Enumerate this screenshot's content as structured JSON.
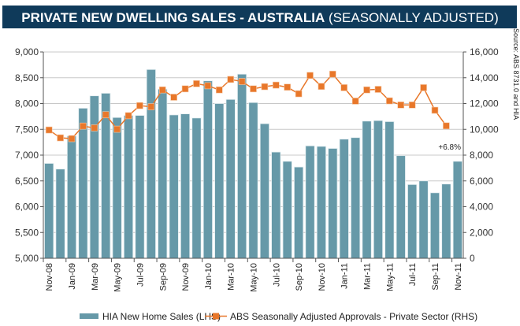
{
  "header": {
    "title_bold": "PRIVATE NEW DWELLING SALES -  AUSTRALIA",
    "title_light": "(SEASONALLY ADJUSTED)",
    "background": "#0f3a5a"
  },
  "source_note": "Source: ABS 8731.0 and HIA",
  "chart_data": {
    "type": "bar+line",
    "categories": [
      "Nov-08",
      "Dec-08",
      "Jan-09",
      "Feb-09",
      "Mar-09",
      "Apr-09",
      "May-09",
      "Jun-09",
      "Jul-09",
      "Aug-09",
      "Sep-09",
      "Oct-09",
      "Nov-09",
      "Dec-09",
      "Jan-10",
      "Feb-10",
      "Mar-10",
      "Apr-10",
      "May-10",
      "Jun-10",
      "Jul-10",
      "Aug-10",
      "Sep-10",
      "Oct-10",
      "Nov-10",
      "Dec-10",
      "Jan-11",
      "Feb-11",
      "Mar-11",
      "Apr-11",
      "May-11",
      "Jun-11",
      "Jul-11",
      "Aug-11",
      "Sep-11",
      "Oct-11",
      "Nov-11"
    ],
    "tick_labels": [
      "Nov-08",
      "Jan-09",
      "Mar-09",
      "May-09",
      "Jul-09",
      "Sep-09",
      "Nov-09",
      "Jan-10",
      "Mar-10",
      "May-10",
      "Jul-10",
      "Sep-10",
      "Nov-10",
      "Jan-11",
      "Mar-11",
      "May-11",
      "Jul-11",
      "Sep-11",
      "Nov-11"
    ],
    "series": [
      {
        "name": "HIA New Home Sales (LHS)",
        "type": "bar",
        "axis": "left",
        "color": "#6699a8",
        "values": [
          6840,
          6730,
          7370,
          7910,
          8150,
          8200,
          7730,
          7770,
          7770,
          8660,
          8280,
          7780,
          7800,
          7720,
          8440,
          8000,
          8080,
          8570,
          8020,
          7610,
          7060,
          6880,
          6770,
          7180,
          7170,
          7130,
          7310,
          7340,
          7660,
          7670,
          7650,
          6990,
          6430,
          6500,
          6270,
          6440,
          6880
        ]
      },
      {
        "name": "ABS Seasonally Adjusted Approvals - Private Sector (RHS)",
        "type": "line",
        "axis": "right",
        "color": "#e8772a",
        "values": [
          9950,
          9340,
          9280,
          10250,
          10110,
          11130,
          10010,
          11060,
          11840,
          11750,
          13060,
          12490,
          13140,
          13540,
          13380,
          13060,
          13870,
          13710,
          13140,
          13310,
          13430,
          13270,
          12760,
          14180,
          13330,
          14280,
          13230,
          12190,
          13060,
          13100,
          12210,
          11890,
          11890,
          13230,
          11480,
          10270,
          null
        ]
      }
    ],
    "left_axis": {
      "range": [
        5000,
        9000
      ],
      "ticks": [
        "5,000",
        "5,500",
        "6,000",
        "6,500",
        "7,000",
        "7,500",
        "8,000",
        "8,500",
        "9,000"
      ]
    },
    "right_axis": {
      "range": [
        0,
        16000
      ],
      "ticks": [
        "0",
        "2,000",
        "4,000",
        "6,000",
        "8,000",
        "10,000",
        "12,000",
        "14,000",
        "16,000"
      ]
    },
    "annotation": "+6.8%",
    "grid": true,
    "legend": "bottom"
  }
}
